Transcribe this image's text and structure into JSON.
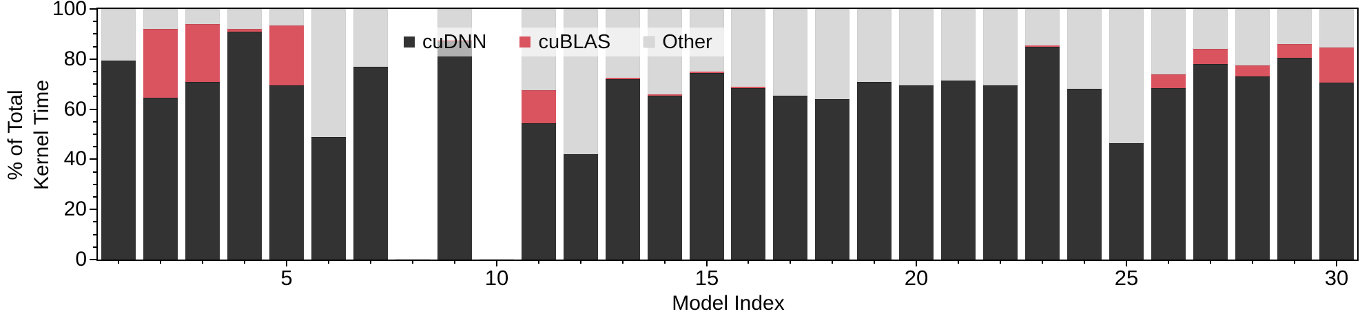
{
  "chart_data": {
    "type": "bar",
    "stacked": true,
    "title": "",
    "xlabel": "Model Index",
    "ylabel": "% of Total\nKernel Time",
    "ylim": [
      0,
      100
    ],
    "y_major_ticks": [
      0,
      20,
      40,
      60,
      80,
      100
    ],
    "y_minor_tick_step": 5,
    "x_major_ticks": [
      5,
      10,
      15,
      20,
      25,
      30
    ],
    "x_minor_tick_step": 1,
    "grid": false,
    "legend_position": "top-center-inside",
    "categories": [
      1,
      2,
      3,
      4,
      5,
      6,
      7,
      8,
      9,
      10,
      11,
      12,
      13,
      14,
      15,
      16,
      17,
      18,
      19,
      20,
      21,
      22,
      23,
      24,
      25,
      26,
      27,
      28,
      29,
      30
    ],
    "series": [
      {
        "name": "cuDNN",
        "color": "#333333",
        "values": [
          79.5,
          64.5,
          71,
          91,
          69.5,
          49,
          77,
          0,
          87,
          0,
          54.5,
          42,
          72,
          65.5,
          74.5,
          68.5,
          65.5,
          64,
          71,
          69.5,
          71.5,
          69.5,
          85,
          68,
          46.5,
          68.5,
          78,
          73,
          80.5,
          70.5
        ]
      },
      {
        "name": "cuBLAS",
        "color": "#d9545f",
        "values": [
          0,
          27.5,
          23,
          1,
          24,
          0,
          0,
          0,
          0.7,
          0,
          13,
          0,
          0.5,
          0.5,
          0.5,
          0.5,
          0,
          0,
          0,
          0,
          0,
          0,
          0.5,
          0,
          0,
          5.5,
          6,
          4.5,
          5.5,
          14
        ]
      },
      {
        "name": "Other",
        "color": "#d8d8d8",
        "values": [
          20.5,
          8,
          6,
          8,
          6.5,
          51,
          23,
          0.4,
          12.3,
          0.4,
          32.5,
          58,
          27.5,
          34,
          25,
          31,
          34.5,
          36,
          29,
          30.5,
          28.5,
          30.5,
          14.5,
          32,
          53.5,
          26,
          16,
          22.5,
          14,
          15.5
        ]
      }
    ],
    "missing_bars": [
      8,
      10
    ],
    "axis_color": "#000000",
    "background_color": "#ffffff"
  },
  "legend": {
    "items": [
      {
        "label": "cuDNN"
      },
      {
        "label": "cuBLAS"
      },
      {
        "label": "Other"
      }
    ]
  }
}
